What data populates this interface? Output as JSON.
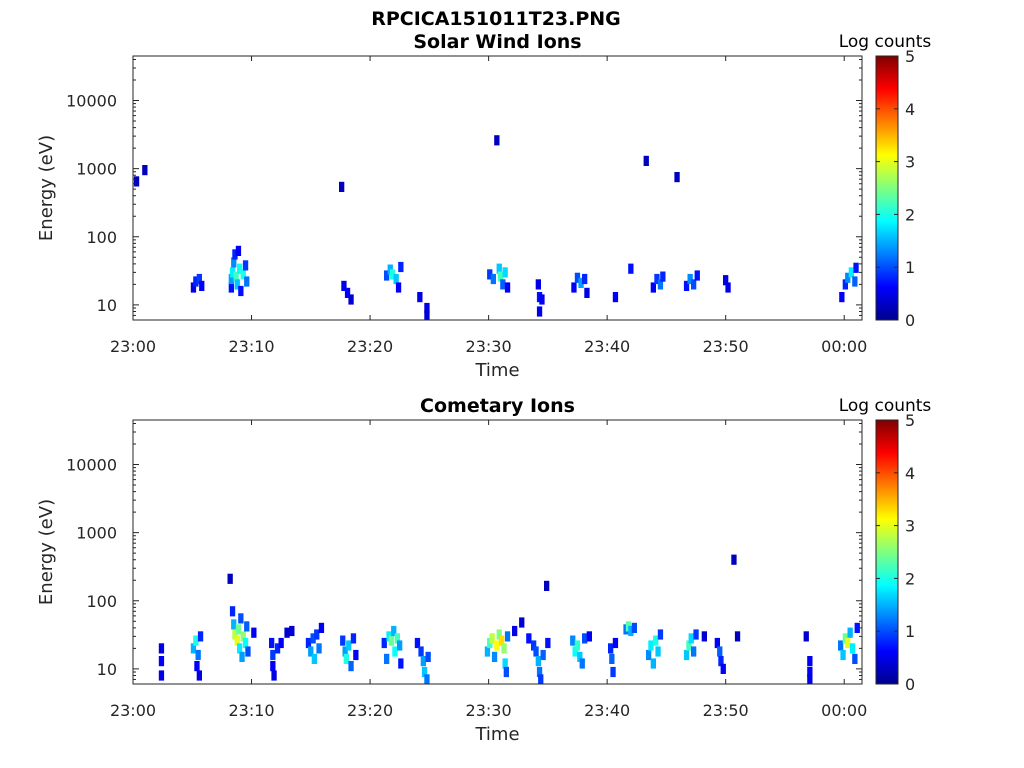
{
  "figure_title": "RPCICA151011T23.PNG",
  "chart_data": [
    {
      "type": "heatmap",
      "title": "Solar Wind Ions",
      "xlabel": "Time",
      "ylabel": "Energy (eV)",
      "y_scale": "log",
      "ylim": [
        6,
        45000
      ],
      "xlim_minutes": [
        0,
        61.5
      ],
      "x_ticks": [
        {
          "label": "23:00",
          "minute": 0
        },
        {
          "label": "23:10",
          "minute": 10
        },
        {
          "label": "23:20",
          "minute": 20
        },
        {
          "label": "23:30",
          "minute": 30
        },
        {
          "label": "23:40",
          "minute": 40
        },
        {
          "label": "23:50",
          "minute": 50
        },
        {
          "label": "00:00",
          "minute": 60
        }
      ],
      "y_ticks": [
        {
          "label": "10",
          "value": 10
        },
        {
          "label": "100",
          "value": 100
        },
        {
          "label": "1000",
          "value": 1000
        },
        {
          "label": "10000",
          "value": 10000
        }
      ],
      "colorbar": {
        "label": "Log counts",
        "min": 0,
        "max": 5,
        "ticks": [
          "0",
          "1",
          "2",
          "3",
          "4",
          "5"
        ],
        "colormap": "jet"
      },
      "cells": [
        {
          "t": 0.3,
          "e": 650,
          "c": 0.3
        },
        {
          "t": 1.0,
          "e": 950,
          "c": 0.3
        },
        {
          "t": 5.1,
          "e": 18,
          "c": 0.5
        },
        {
          "t": 5.3,
          "e": 22,
          "c": 0.8
        },
        {
          "t": 5.6,
          "e": 24,
          "c": 0.9
        },
        {
          "t": 5.8,
          "e": 19,
          "c": 0.6
        },
        {
          "t": 8.3,
          "e": 18,
          "c": 0.7
        },
        {
          "t": 8.3,
          "e": 24,
          "c": 1.4
        },
        {
          "t": 8.4,
          "e": 30,
          "c": 1.8
        },
        {
          "t": 8.5,
          "e": 42,
          "c": 1.3
        },
        {
          "t": 8.6,
          "e": 55,
          "c": 0.8
        },
        {
          "t": 8.7,
          "e": 26,
          "c": 2.2
        },
        {
          "t": 8.8,
          "e": 20,
          "c": 1.6
        },
        {
          "t": 8.9,
          "e": 62,
          "c": 0.6
        },
        {
          "t": 9.0,
          "e": 34,
          "c": 1.9
        },
        {
          "t": 9.1,
          "e": 16,
          "c": 0.7
        },
        {
          "t": 9.3,
          "e": 28,
          "c": 2.0
        },
        {
          "t": 9.5,
          "e": 38,
          "c": 0.9
        },
        {
          "t": 9.6,
          "e": 22,
          "c": 1.2
        },
        {
          "t": 17.6,
          "e": 540,
          "c": 0.3
        },
        {
          "t": 17.8,
          "e": 19,
          "c": 0.5
        },
        {
          "t": 18.1,
          "e": 15,
          "c": 0.6
        },
        {
          "t": 18.4,
          "e": 12,
          "c": 0.4
        },
        {
          "t": 21.4,
          "e": 27,
          "c": 1.0
        },
        {
          "t": 21.7,
          "e": 33,
          "c": 1.5
        },
        {
          "t": 21.9,
          "e": 28,
          "c": 2.0
        },
        {
          "t": 22.2,
          "e": 24,
          "c": 1.6
        },
        {
          "t": 22.4,
          "e": 18,
          "c": 0.6
        },
        {
          "t": 22.6,
          "e": 36,
          "c": 0.8
        },
        {
          "t": 24.2,
          "e": 13,
          "c": 0.5
        },
        {
          "t": 24.8,
          "e": 9,
          "c": 0.5
        },
        {
          "t": 24.8,
          "e": 7,
          "c": 0.4
        },
        {
          "t": 30.1,
          "e": 28,
          "c": 0.9
        },
        {
          "t": 30.4,
          "e": 24,
          "c": 1.2
        },
        {
          "t": 30.7,
          "e": 2600,
          "c": 0.3
        },
        {
          "t": 30.9,
          "e": 34,
          "c": 1.6
        },
        {
          "t": 31.0,
          "e": 26,
          "c": 2.2
        },
        {
          "t": 31.2,
          "e": 20,
          "c": 1.1
        },
        {
          "t": 31.4,
          "e": 30,
          "c": 1.7
        },
        {
          "t": 31.6,
          "e": 18,
          "c": 0.6
        },
        {
          "t": 34.2,
          "e": 20,
          "c": 0.5
        },
        {
          "t": 34.3,
          "e": 13,
          "c": 0.7
        },
        {
          "t": 34.3,
          "e": 8,
          "c": 0.5
        },
        {
          "t": 34.5,
          "e": 12,
          "c": 0.6
        },
        {
          "t": 37.2,
          "e": 18,
          "c": 0.6
        },
        {
          "t": 37.5,
          "e": 25,
          "c": 1.0
        },
        {
          "t": 37.8,
          "e": 21,
          "c": 1.4
        },
        {
          "t": 38.1,
          "e": 24,
          "c": 0.8
        },
        {
          "t": 38.3,
          "e": 15,
          "c": 0.5
        },
        {
          "t": 40.7,
          "e": 13,
          "c": 0.6
        },
        {
          "t": 42.0,
          "e": 34,
          "c": 0.7
        },
        {
          "t": 43.3,
          "e": 1300,
          "c": 0.3
        },
        {
          "t": 43.9,
          "e": 18,
          "c": 0.6
        },
        {
          "t": 44.2,
          "e": 24,
          "c": 0.9
        },
        {
          "t": 44.5,
          "e": 20,
          "c": 1.2
        },
        {
          "t": 44.7,
          "e": 26,
          "c": 0.8
        },
        {
          "t": 45.9,
          "e": 750,
          "c": 0.3
        },
        {
          "t": 46.7,
          "e": 19,
          "c": 0.7
        },
        {
          "t": 47.0,
          "e": 24,
          "c": 1.3
        },
        {
          "t": 47.3,
          "e": 20,
          "c": 1.0
        },
        {
          "t": 47.6,
          "e": 27,
          "c": 0.7
        },
        {
          "t": 50.0,
          "e": 23,
          "c": 0.5
        },
        {
          "t": 50.2,
          "e": 18,
          "c": 0.5
        },
        {
          "t": 59.8,
          "e": 13,
          "c": 0.6
        },
        {
          "t": 60.1,
          "e": 20,
          "c": 0.8
        },
        {
          "t": 60.3,
          "e": 25,
          "c": 1.3
        },
        {
          "t": 60.6,
          "e": 30,
          "c": 1.8
        },
        {
          "t": 60.9,
          "e": 22,
          "c": 1.1
        },
        {
          "t": 61.0,
          "e": 35,
          "c": 0.7
        }
      ]
    },
    {
      "type": "heatmap",
      "title": "Cometary Ions",
      "xlabel": "Time",
      "ylabel": "Energy (eV)",
      "y_scale": "log",
      "ylim": [
        6,
        45000
      ],
      "xlim_minutes": [
        0,
        61.5
      ],
      "x_ticks": [
        {
          "label": "23:00",
          "minute": 0
        },
        {
          "label": "23:10",
          "minute": 10
        },
        {
          "label": "23:20",
          "minute": 20
        },
        {
          "label": "23:30",
          "minute": 30
        },
        {
          "label": "23:40",
          "minute": 40
        },
        {
          "label": "23:50",
          "minute": 50
        },
        {
          "label": "00:00",
          "minute": 60
        }
      ],
      "y_ticks": [
        {
          "label": "10",
          "value": 10
        },
        {
          "label": "100",
          "value": 100
        },
        {
          "label": "1000",
          "value": 1000
        },
        {
          "label": "10000",
          "value": 10000
        }
      ],
      "colorbar": {
        "label": "Log counts",
        "min": 0,
        "max": 5,
        "ticks": [
          "0",
          "1",
          "2",
          "3",
          "4",
          "5"
        ],
        "colormap": "jet"
      },
      "cells": [
        {
          "t": 2.4,
          "e": 20,
          "c": 0.5
        },
        {
          "t": 2.4,
          "e": 13,
          "c": 0.6
        },
        {
          "t": 2.4,
          "e": 8,
          "c": 0.5
        },
        {
          "t": 5.1,
          "e": 20,
          "c": 1.5
        },
        {
          "t": 5.3,
          "e": 26,
          "c": 2.0
        },
        {
          "t": 5.5,
          "e": 16,
          "c": 1.2
        },
        {
          "t": 5.7,
          "e": 30,
          "c": 0.8
        },
        {
          "t": 5.4,
          "e": 11,
          "c": 0.6
        },
        {
          "t": 5.6,
          "e": 8,
          "c": 0.5
        },
        {
          "t": 8.2,
          "e": 210,
          "c": 0.3
        },
        {
          "t": 8.4,
          "e": 70,
          "c": 0.8
        },
        {
          "t": 8.5,
          "e": 45,
          "c": 1.5
        },
        {
          "t": 8.6,
          "e": 32,
          "c": 2.8
        },
        {
          "t": 8.8,
          "e": 26,
          "c": 3.0
        },
        {
          "t": 8.9,
          "e": 38,
          "c": 2.4
        },
        {
          "t": 9.0,
          "e": 20,
          "c": 1.8
        },
        {
          "t": 9.1,
          "e": 55,
          "c": 1.0
        },
        {
          "t": 9.2,
          "e": 15,
          "c": 1.4
        },
        {
          "t": 9.3,
          "e": 30,
          "c": 2.6
        },
        {
          "t": 9.5,
          "e": 24,
          "c": 1.9
        },
        {
          "t": 9.6,
          "e": 42,
          "c": 1.1
        },
        {
          "t": 9.7,
          "e": 18,
          "c": 1.0
        },
        {
          "t": 10.2,
          "e": 34,
          "c": 0.6
        },
        {
          "t": 11.7,
          "e": 24,
          "c": 0.7
        },
        {
          "t": 11.8,
          "e": 16,
          "c": 0.9
        },
        {
          "t": 11.8,
          "e": 11,
          "c": 0.6
        },
        {
          "t": 11.9,
          "e": 8,
          "c": 0.5
        },
        {
          "t": 12.2,
          "e": 20,
          "c": 0.8
        },
        {
          "t": 12.5,
          "e": 24,
          "c": 0.6
        },
        {
          "t": 13.0,
          "e": 34,
          "c": 0.4
        },
        {
          "t": 13.4,
          "e": 36,
          "c": 0.4
        },
        {
          "t": 14.8,
          "e": 24,
          "c": 0.8
        },
        {
          "t": 15.0,
          "e": 18,
          "c": 1.4
        },
        {
          "t": 15.2,
          "e": 28,
          "c": 1.0
        },
        {
          "t": 15.3,
          "e": 14,
          "c": 1.6
        },
        {
          "t": 15.5,
          "e": 32,
          "c": 0.9
        },
        {
          "t": 15.7,
          "e": 20,
          "c": 1.2
        },
        {
          "t": 15.9,
          "e": 40,
          "c": 0.6
        },
        {
          "t": 17.7,
          "e": 26,
          "c": 0.9
        },
        {
          "t": 17.9,
          "e": 18,
          "c": 1.4
        },
        {
          "t": 18.0,
          "e": 14,
          "c": 2.0
        },
        {
          "t": 18.2,
          "e": 22,
          "c": 1.6
        },
        {
          "t": 18.4,
          "e": 11,
          "c": 1.1
        },
        {
          "t": 18.6,
          "e": 28,
          "c": 0.8
        },
        {
          "t": 18.8,
          "e": 16,
          "c": 0.6
        },
        {
          "t": 21.2,
          "e": 24,
          "c": 0.8
        },
        {
          "t": 21.4,
          "e": 14,
          "c": 1.2
        },
        {
          "t": 21.6,
          "e": 30,
          "c": 1.8
        },
        {
          "t": 21.8,
          "e": 26,
          "c": 2.4
        },
        {
          "t": 22.0,
          "e": 36,
          "c": 1.5
        },
        {
          "t": 22.1,
          "e": 18,
          "c": 1.9
        },
        {
          "t": 22.3,
          "e": 28,
          "c": 2.2
        },
        {
          "t": 22.5,
          "e": 22,
          "c": 1.4
        },
        {
          "t": 22.6,
          "e": 12,
          "c": 0.7
        },
        {
          "t": 24.0,
          "e": 24,
          "c": 0.7
        },
        {
          "t": 24.3,
          "e": 18,
          "c": 0.9
        },
        {
          "t": 24.5,
          "e": 13,
          "c": 1.4
        },
        {
          "t": 24.6,
          "e": 9,
          "c": 1.6
        },
        {
          "t": 24.8,
          "e": 7,
          "c": 1.2
        },
        {
          "t": 24.9,
          "e": 15,
          "c": 1.0
        },
        {
          "t": 29.9,
          "e": 18,
          "c": 1.5
        },
        {
          "t": 30.1,
          "e": 24,
          "c": 2.2
        },
        {
          "t": 30.3,
          "e": 28,
          "c": 2.8
        },
        {
          "t": 30.5,
          "e": 15,
          "c": 1.3
        },
        {
          "t": 30.7,
          "e": 22,
          "c": 3.1
        },
        {
          "t": 30.9,
          "e": 32,
          "c": 2.5
        },
        {
          "t": 31.1,
          "e": 26,
          "c": 3.3
        },
        {
          "t": 31.3,
          "e": 20,
          "c": 2.6
        },
        {
          "t": 31.4,
          "e": 12,
          "c": 1.7
        },
        {
          "t": 31.6,
          "e": 30,
          "c": 1.2
        },
        {
          "t": 32.2,
          "e": 36,
          "c": 0.5
        },
        {
          "t": 32.8,
          "e": 48,
          "c": 0.4
        },
        {
          "t": 31.5,
          "e": 9,
          "c": 1.0
        },
        {
          "t": 33.4,
          "e": 28,
          "c": 0.7
        },
        {
          "t": 33.8,
          "e": 22,
          "c": 0.9
        },
        {
          "t": 34.0,
          "e": 18,
          "c": 1.0
        },
        {
          "t": 34.2,
          "e": 13,
          "c": 1.5
        },
        {
          "t": 34.3,
          "e": 9,
          "c": 1.2
        },
        {
          "t": 34.4,
          "e": 7,
          "c": 0.9
        },
        {
          "t": 34.6,
          "e": 16,
          "c": 1.1
        },
        {
          "t": 34.9,
          "e": 165,
          "c": 0.3
        },
        {
          "t": 35.0,
          "e": 24,
          "c": 0.7
        },
        {
          "t": 37.1,
          "e": 26,
          "c": 1.3
        },
        {
          "t": 37.3,
          "e": 18,
          "c": 1.9
        },
        {
          "t": 37.5,
          "e": 22,
          "c": 2.1
        },
        {
          "t": 37.7,
          "e": 15,
          "c": 1.6
        },
        {
          "t": 37.9,
          "e": 12,
          "c": 1.2
        },
        {
          "t": 38.1,
          "e": 28,
          "c": 1.0
        },
        {
          "t": 38.5,
          "e": 30,
          "c": 0.6
        },
        {
          "t": 40.3,
          "e": 20,
          "c": 0.8
        },
        {
          "t": 40.4,
          "e": 14,
          "c": 1.1
        },
        {
          "t": 40.5,
          "e": 9,
          "c": 0.9
        },
        {
          "t": 40.7,
          "e": 24,
          "c": 0.6
        },
        {
          "t": 41.6,
          "e": 38,
          "c": 1.2
        },
        {
          "t": 41.8,
          "e": 42,
          "c": 2.3
        },
        {
          "t": 42.0,
          "e": 36,
          "c": 1.5
        },
        {
          "t": 42.3,
          "e": 40,
          "c": 1.0
        },
        {
          "t": 43.5,
          "e": 16,
          "c": 1.3
        },
        {
          "t": 43.7,
          "e": 22,
          "c": 1.8
        },
        {
          "t": 43.9,
          "e": 12,
          "c": 1.5
        },
        {
          "t": 44.1,
          "e": 26,
          "c": 2.0
        },
        {
          "t": 44.3,
          "e": 18,
          "c": 1.6
        },
        {
          "t": 44.5,
          "e": 32,
          "c": 0.9
        },
        {
          "t": 46.7,
          "e": 16,
          "c": 1.6
        },
        {
          "t": 46.9,
          "e": 22,
          "c": 2.2
        },
        {
          "t": 47.1,
          "e": 28,
          "c": 1.7
        },
        {
          "t": 47.3,
          "e": 18,
          "c": 1.2
        },
        {
          "t": 47.5,
          "e": 32,
          "c": 0.9
        },
        {
          "t": 48.2,
          "e": 30,
          "c": 0.4
        },
        {
          "t": 49.3,
          "e": 24,
          "c": 0.6
        },
        {
          "t": 49.5,
          "e": 18,
          "c": 1.1
        },
        {
          "t": 49.6,
          "e": 13,
          "c": 0.8
        },
        {
          "t": 49.8,
          "e": 10,
          "c": 0.6
        },
        {
          "t": 50.7,
          "e": 400,
          "c": 0.3
        },
        {
          "t": 51.0,
          "e": 30,
          "c": 0.3
        },
        {
          "t": 56.8,
          "e": 30,
          "c": 0.4
        },
        {
          "t": 57.1,
          "e": 13,
          "c": 0.6
        },
        {
          "t": 57.1,
          "e": 9,
          "c": 0.6
        },
        {
          "t": 57.1,
          "e": 7,
          "c": 0.5
        },
        {
          "t": 59.7,
          "e": 22,
          "c": 1.2
        },
        {
          "t": 59.9,
          "e": 16,
          "c": 1.6
        },
        {
          "t": 60.1,
          "e": 28,
          "c": 2.4
        },
        {
          "t": 60.3,
          "e": 24,
          "c": 3.0
        },
        {
          "t": 60.5,
          "e": 34,
          "c": 1.5
        },
        {
          "t": 60.7,
          "e": 20,
          "c": 1.8
        },
        {
          "t": 60.9,
          "e": 14,
          "c": 1.0
        },
        {
          "t": 61.1,
          "e": 40,
          "c": 0.7
        }
      ]
    }
  ]
}
